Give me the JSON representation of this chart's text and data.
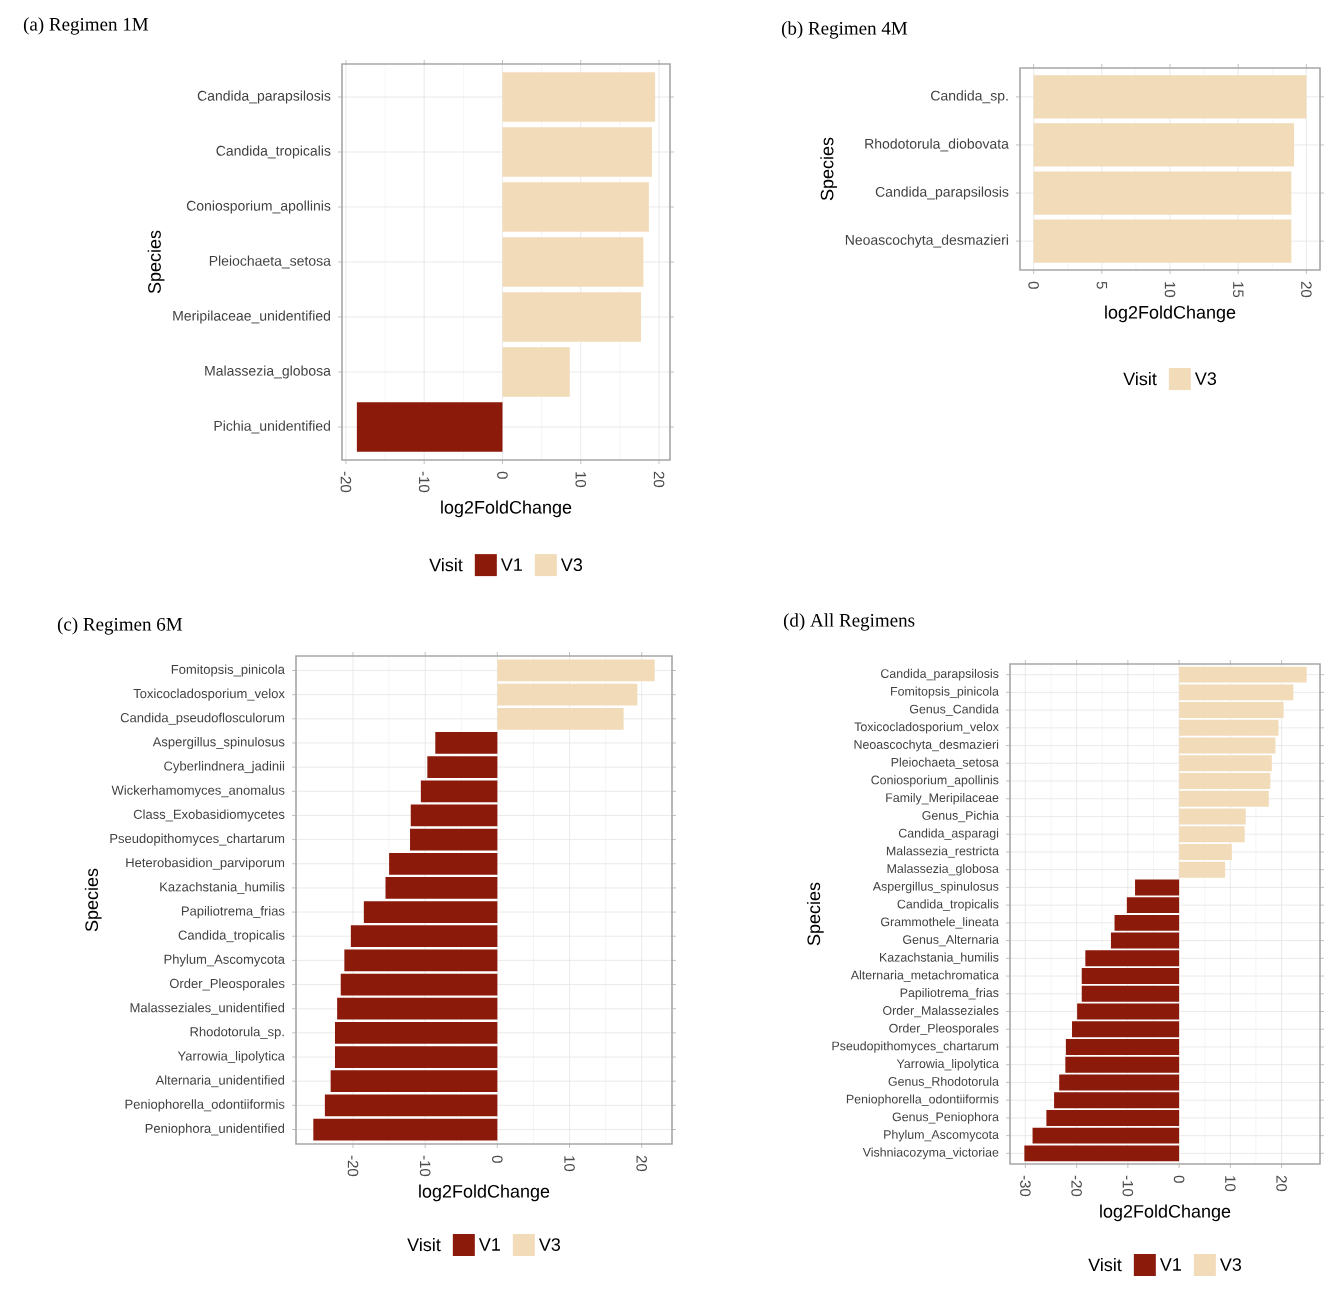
{
  "chart_data": [
    {
      "type": "bar",
      "orientation": "horizontal",
      "title": "(a) Regimen 1M",
      "xlabel": "log2FoldChange",
      "ylabel": "Species",
      "legend_title": "Visit",
      "legend": "bottom",
      "grid": true,
      "xlim": [
        -20.5,
        21.4
      ],
      "xticks": [
        -20,
        -10,
        0,
        10,
        20
      ],
      "categories": [
        "Candida_parapsilosis",
        "Candida_tropicalis",
        "Coniosporium_apollinis",
        "Pleiochaeta_setosa",
        "Meripilaceae_unidentified",
        "Malassezia_globosa",
        "Pichia_unidentified"
      ],
      "series": [
        {
          "name": "V1",
          "color": "#8b1a0a",
          "values": [
            null,
            null,
            null,
            null,
            null,
            null,
            -18.6
          ]
        },
        {
          "name": "V3",
          "color": "#f2dbb9",
          "values": [
            19.5,
            19.1,
            18.7,
            18.0,
            17.7,
            8.6,
            null
          ]
        }
      ]
    },
    {
      "type": "bar",
      "orientation": "horizontal",
      "title": "(b) Regimen 4M",
      "xlabel": "log2FoldChange",
      "ylabel": "Species",
      "legend_title": "Visit",
      "legend": "bottom",
      "grid": true,
      "xlim": [
        -1,
        21
      ],
      "xticks": [
        0,
        5,
        10,
        15,
        20
      ],
      "categories": [
        "Candida_sp.",
        "Rhodotorula_diobovata",
        "Candida_parapsilosis",
        "Neoascochyta_desmazieri"
      ],
      "series": [
        {
          "name": "V3",
          "color": "#f2dbb9",
          "values": [
            20.0,
            19.1,
            18.9,
            18.9
          ]
        }
      ]
    },
    {
      "type": "bar",
      "orientation": "horizontal",
      "title": "(c) Regimen 6M",
      "xlabel": "log2FoldChange",
      "ylabel": "Species",
      "legend_title": "Visit",
      "legend": "bottom",
      "grid": true,
      "xlim": [
        -27.9,
        24.2
      ],
      "xticks": [
        -20,
        -10,
        0,
        10,
        20
      ],
      "categories": [
        "Fomitopsis_pinicola",
        "Toxicocladosporium_velox",
        "Candida_pseudoflosculorum",
        "Aspergillus_spinulosus",
        "Cyberlindnera_jadinii",
        "Wickerhamomyces_anomalus",
        "Class_Exobasidiomycetes",
        "Pseudopithomyces_chartarum",
        "Heterobasidion_parviporum",
        "Kazachstania_humilis",
        "Papiliotrema_frias",
        "Candida_tropicalis",
        "Phylum_Ascomycota",
        "Order_Pleosporales",
        "Malasseziales_unidentified",
        "Rhodotorula_sp.",
        "Yarrowia_lipolytica",
        "Alternaria_unidentified",
        "Peniophorella_odontiiformis",
        "Peniophora_unidentified"
      ],
      "series": [
        {
          "name": "V1",
          "color": "#8b1a0a",
          "values": [
            null,
            null,
            null,
            -8.6,
            -9.7,
            -10.6,
            -12.0,
            -12.1,
            -15.0,
            -15.5,
            -18.5,
            -20.3,
            -21.2,
            -21.7,
            -22.2,
            -22.5,
            -22.5,
            -23.1,
            -23.9,
            -25.5
          ]
        },
        {
          "name": "V3",
          "color": "#f2dbb9",
          "values": [
            21.8,
            19.4,
            17.5,
            null,
            null,
            null,
            null,
            null,
            null,
            null,
            null,
            null,
            null,
            null,
            null,
            null,
            null,
            null,
            null,
            null
          ]
        }
      ]
    },
    {
      "type": "bar",
      "orientation": "horizontal",
      "title": "(d) All Regimens",
      "xlabel": "log2FoldChange",
      "ylabel": "Species",
      "legend_title": "Visit",
      "legend": "bottom",
      "grid": true,
      "xlim": [
        -33,
        27.5
      ],
      "xticks": [
        -30,
        -20,
        -10,
        0,
        10,
        20
      ],
      "categories": [
        "Candida_parapsilosis",
        "Fomitopsis_pinicola",
        "Genus_Candida",
        "Toxicocladosporium_velox",
        "Neoascochyta_desmazieri",
        "Pleiochaeta_setosa",
        "Coniosporium_apollinis",
        "Family_Meripilaceae",
        "Genus_Pichia",
        "Candida_asparagi",
        "Malassezia_restricta",
        "Malassezia_globosa",
        "Aspergillus_spinulosus",
        "Candida_tropicalis",
        "Grammothele_lineata",
        "Genus_Alternaria",
        "Kazachstania_humilis",
        "Alternaria_metachromatica",
        "Papiliotrema_frias",
        "Order_Malasseziales",
        "Order_Pleosporales",
        "Pseudopithomyces_chartarum",
        "Yarrowia_lipolytica",
        "Genus_Rhodotorula",
        "Peniophorella_odontiiformis",
        "Genus_Peniophora",
        "Phylum_Ascomycota",
        "Vishniacozyma_victoriae"
      ],
      "series": [
        {
          "name": "V1",
          "color": "#8b1a0a",
          "values": [
            null,
            null,
            null,
            null,
            null,
            null,
            null,
            null,
            null,
            null,
            null,
            null,
            -8.6,
            -10.2,
            -12.6,
            -13.3,
            -18.3,
            -19.0,
            -19.0,
            -19.9,
            -20.9,
            -22.1,
            -22.2,
            -23.4,
            -24.4,
            -25.9,
            -28.6,
            -30.2
          ]
        },
        {
          "name": "V3",
          "color": "#f2dbb9",
          "values": [
            24.9,
            22.3,
            20.4,
            19.4,
            18.8,
            18.1,
            17.8,
            17.5,
            13.0,
            12.8,
            10.3,
            9.0,
            null,
            null,
            null,
            null,
            null,
            null,
            null,
            null,
            null,
            null,
            null,
            null,
            null,
            null,
            null,
            null
          ]
        }
      ]
    }
  ]
}
